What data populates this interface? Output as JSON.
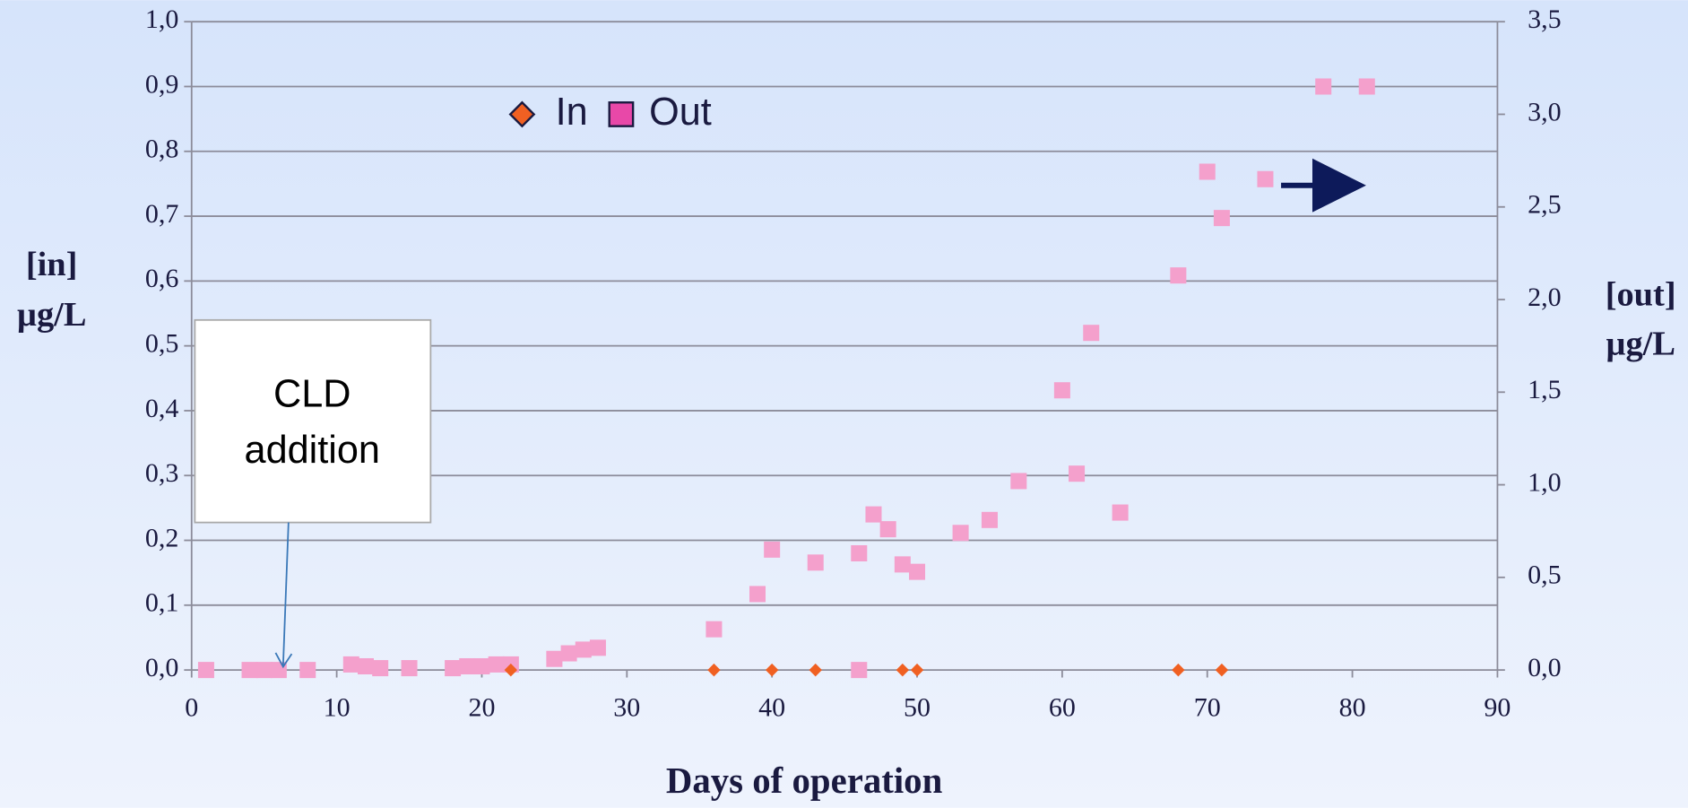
{
  "chart_data": {
    "type": "scatter",
    "xlabel": "Days of operation",
    "ylabel": [
      "[in]",
      "µg/L"
    ],
    "y2label": [
      "[out]",
      "µg/L"
    ],
    "annotation": [
      "CLD",
      "addition"
    ],
    "xlim": [
      0,
      90
    ],
    "xticks": [
      0,
      10,
      20,
      30,
      40,
      50,
      60,
      70,
      80,
      90
    ],
    "ylim": [
      0,
      1
    ],
    "yticks": [
      {
        "value": 0,
        "label": "0,0"
      },
      {
        "value": 0.1,
        "label": "0,1"
      },
      {
        "value": 0.2,
        "label": "0,2"
      },
      {
        "value": 0.3,
        "label": "0,3"
      },
      {
        "value": 0.4,
        "label": "0,4"
      },
      {
        "value": 0.5,
        "label": "0,5"
      },
      {
        "value": 0.6,
        "label": "0,6"
      },
      {
        "value": 0.7,
        "label": "0,7"
      },
      {
        "value": 0.8,
        "label": "0,8"
      },
      {
        "value": 0.9,
        "label": "0,9"
      },
      {
        "value": 1,
        "label": "1,0"
      }
    ],
    "y2lim": [
      0,
      3.5
    ],
    "y2ticks": [
      {
        "value": 0,
        "label": "0,0"
      },
      {
        "value": 0.5,
        "label": "0,5"
      },
      {
        "value": 1,
        "label": "1,0"
      },
      {
        "value": 1.5,
        "label": "1,5"
      },
      {
        "value": 2,
        "label": "2,0"
      },
      {
        "value": 2.5,
        "label": "2,5"
      },
      {
        "value": 3,
        "label": "3,0"
      },
      {
        "value": 3.5,
        "label": "3,5"
      }
    ],
    "grid": true,
    "series": [
      {
        "name": "In",
        "color": "#f06022",
        "marker": "diamond",
        "x": [
          22,
          36,
          40,
          43,
          49,
          50,
          68,
          71
        ],
        "values": [
          0,
          0,
          0,
          0,
          0,
          0,
          0,
          0
        ]
      },
      {
        "name": "Out",
        "color": "#f4a0cc",
        "marker": "square",
        "axis": "y2",
        "x": [
          1,
          4,
          5,
          6,
          8,
          11,
          12,
          13,
          15,
          18,
          19,
          20,
          21,
          22,
          25,
          26,
          27,
          28,
          36,
          39,
          40,
          43,
          46,
          46,
          47,
          48,
          49,
          50,
          53,
          55,
          57,
          60,
          61,
          62,
          64,
          68,
          70,
          71,
          74,
          78,
          81
        ],
        "values": [
          0,
          0,
          0,
          0,
          0,
          0.03,
          0.02,
          0.01,
          0.01,
          0.01,
          0.02,
          0.02,
          0.03,
          0.03,
          0.06,
          0.09,
          0.11,
          0.12,
          0.22,
          0.41,
          0.65,
          0.58,
          0.63,
          0,
          0.84,
          0.76,
          0.57,
          0.53,
          0.74,
          0.81,
          1.02,
          1.51,
          1.06,
          1.82,
          0.85,
          2.13,
          2.69,
          2.44,
          2.65,
          3.15,
          3.15
        ]
      }
    ]
  }
}
